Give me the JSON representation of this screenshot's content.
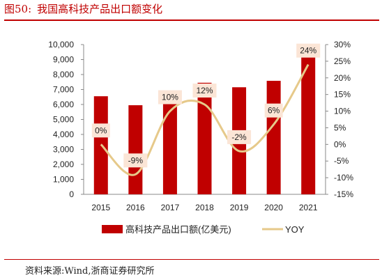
{
  "header": {
    "figure_number": "图50:",
    "title": "我国高科技产品出口额变化"
  },
  "footer": {
    "source": "资料来源:Wind,浙商证券研究所"
  },
  "chart_data": {
    "type": "bar",
    "title": "我国高科技产品出口额变化",
    "categories": [
      "2015",
      "2016",
      "2017",
      "2018",
      "2019",
      "2020",
      "2021"
    ],
    "series": [
      {
        "name": "高科技产品出口额(亿美元)",
        "type": "bar",
        "axis": "left",
        "color": "#c00000",
        "values": [
          6550,
          5950,
          6700,
          7450,
          7150,
          7580,
          9320
        ]
      },
      {
        "name": "YOY",
        "type": "line",
        "axis": "right",
        "color": "#e6c98a",
        "values": [
          0,
          -9,
          10,
          12,
          -2,
          6,
          24
        ],
        "data_labels": [
          "0%",
          "-9%",
          "10%",
          "12%",
          "-2%",
          "6%",
          "24%"
        ]
      }
    ],
    "y_left": {
      "min": 0,
      "max": 10000,
      "step": 1000,
      "tick_labels": [
        "0",
        "1,000",
        "2,000",
        "3,000",
        "4,000",
        "5,000",
        "6,000",
        "7,000",
        "8,000",
        "9,000",
        "10,000"
      ]
    },
    "y_right": {
      "min": -15,
      "max": 30,
      "step": 5,
      "tick_labels": [
        "-15%",
        "-10%",
        "-5%",
        "0%",
        "5%",
        "10%",
        "15%",
        "20%",
        "25%",
        "30%"
      ]
    },
    "grid": false,
    "legend_position": "bottom",
    "label_box_color": "#fbe5d6"
  }
}
